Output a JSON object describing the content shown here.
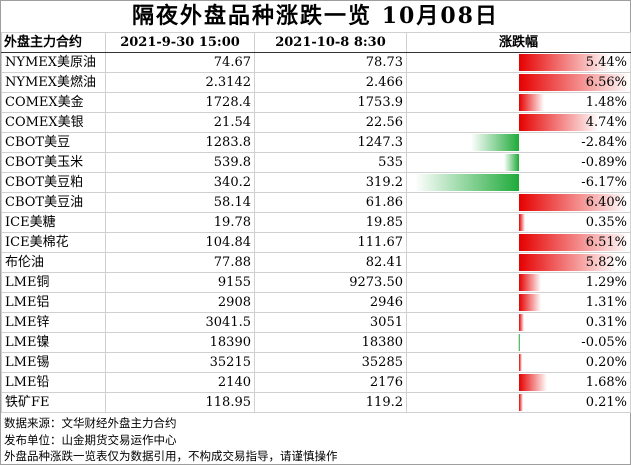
{
  "title": "隔夜外盘品种涨跌一览 10月08日",
  "header": {
    "name": "外盘主力合约",
    "date1": "2021-9-30 15:00",
    "date2": "2021-10-8 8:30",
    "change": "涨跌幅"
  },
  "colors": {
    "up": "#e60000",
    "down": "#1faa3a"
  },
  "max_abs_change": 6.56,
  "rows": [
    {
      "name": "NYMEX美原油",
      "v1": "74.67",
      "v2": "78.73",
      "change": "5.44%",
      "pct": 5.44
    },
    {
      "name": "NYMEX美燃油",
      "v1": "2.3142",
      "v2": "2.466",
      "change": "6.56%",
      "pct": 6.56
    },
    {
      "name": "COMEX美金",
      "v1": "1728.4",
      "v2": "1753.9",
      "change": "1.48%",
      "pct": 1.48
    },
    {
      "name": "COMEX美银",
      "v1": "21.54",
      "v2": "22.56",
      "change": "4.74%",
      "pct": 4.74
    },
    {
      "name": "CBOT美豆",
      "v1": "1283.8",
      "v2": "1247.3",
      "change": "-2.84%",
      "pct": -2.84
    },
    {
      "name": "CBOT美玉米",
      "v1": "539.8",
      "v2": "535",
      "change": "-0.89%",
      "pct": -0.89
    },
    {
      "name": "CBOT美豆粕",
      "v1": "340.2",
      "v2": "319.2",
      "change": "-6.17%",
      "pct": -6.17
    },
    {
      "name": "CBOT美豆油",
      "v1": "58.14",
      "v2": "61.86",
      "change": "6.40%",
      "pct": 6.4
    },
    {
      "name": "ICE美糖",
      "v1": "19.78",
      "v2": "19.85",
      "change": "0.35%",
      "pct": 0.35
    },
    {
      "name": "ICE美棉花",
      "v1": "104.84",
      "v2": "111.67",
      "change": "6.51%",
      "pct": 6.51
    },
    {
      "name": "布伦油",
      "v1": "77.88",
      "v2": "82.41",
      "change": "5.82%",
      "pct": 5.82
    },
    {
      "name": "LME铜",
      "v1": "9155",
      "v2": "9273.50",
      "change": "1.29%",
      "pct": 1.29
    },
    {
      "name": "LME铝",
      "v1": "2908",
      "v2": "2946",
      "change": "1.31%",
      "pct": 1.31
    },
    {
      "name": "LME锌",
      "v1": "3041.5",
      "v2": "3051",
      "change": "0.31%",
      "pct": 0.31
    },
    {
      "name": "LME镍",
      "v1": "18390",
      "v2": "18380",
      "change": "-0.05%",
      "pct": -0.05
    },
    {
      "name": "LME锡",
      "v1": "35215",
      "v2": "35285",
      "change": "0.20%",
      "pct": 0.2
    },
    {
      "name": "LME铅",
      "v1": "2140",
      "v2": "2176",
      "change": "1.68%",
      "pct": 1.68
    },
    {
      "name": "铁矿FE",
      "v1": "118.95",
      "v2": "119.2",
      "change": "0.21%",
      "pct": 0.21
    }
  ],
  "footer": {
    "source": "数据来源：文华财经外盘主力合约",
    "publisher": "发布单位：山金期货交易运作中心",
    "disclaimer": "外盘品种涨跌一览表仅为数据引用，不构成交易指导，请谨慎操作"
  }
}
